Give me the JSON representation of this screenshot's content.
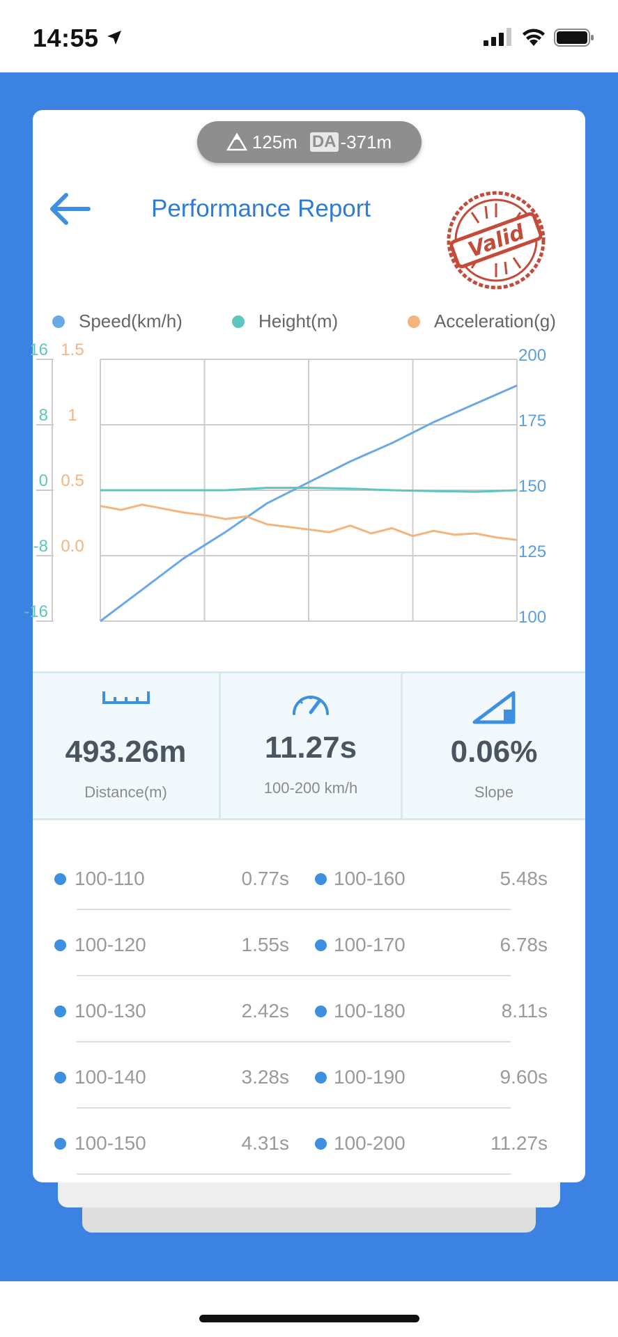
{
  "status_bar": {
    "time": "14:55"
  },
  "altitude_pill": {
    "altitude": "125m",
    "da_label": "DA",
    "density_altitude": "-371m"
  },
  "header": {
    "title": "Performance Report",
    "stamp_text": "Valid"
  },
  "colors": {
    "speed": "#6aa8e6",
    "height": "#5cc6bf",
    "acceleration": "#f4b47e",
    "accent": "#2f7bd8",
    "background": "#3c82e3"
  },
  "chart_data": {
    "type": "line",
    "series": [
      {
        "name": "Speed(km/h)",
        "axis": "right",
        "x": [
          0,
          0.1,
          0.2,
          0.3,
          0.4,
          0.5,
          0.6,
          0.7,
          0.8,
          0.9,
          1.0
        ],
        "values": [
          100,
          112,
          124,
          134,
          145,
          153,
          161,
          168,
          176,
          183,
          190
        ]
      },
      {
        "name": "Height(m)",
        "axis": "left-height",
        "x": [
          0,
          0.1,
          0.2,
          0.3,
          0.4,
          0.5,
          0.6,
          0.7,
          0.8,
          0.9,
          1.0
        ],
        "values": [
          0,
          0,
          0,
          0,
          0.3,
          0.3,
          0.2,
          0,
          -0.1,
          -0.2,
          0
        ]
      },
      {
        "name": "Acceleration(g)",
        "axis": "left-acceleration",
        "x": [
          0,
          0.05,
          0.1,
          0.15,
          0.2,
          0.25,
          0.3,
          0.35,
          0.4,
          0.45,
          0.5,
          0.55,
          0.6,
          0.65,
          0.7,
          0.75,
          0.8,
          0.85,
          0.9,
          0.95,
          1.0
        ],
        "values": [
          0.38,
          0.35,
          0.39,
          0.36,
          0.33,
          0.31,
          0.28,
          0.3,
          0.24,
          0.22,
          0.2,
          0.18,
          0.23,
          0.17,
          0.21,
          0.15,
          0.19,
          0.16,
          0.17,
          0.14,
          0.12
        ]
      }
    ],
    "axes": {
      "left_height": {
        "ticks": [
          "16",
          "8",
          "0",
          "-8",
          "-16"
        ],
        "range": [
          -16,
          16
        ]
      },
      "left_acceleration": {
        "ticks": [
          "1.5",
          "1",
          "0.5",
          "0.0"
        ],
        "range": [
          -0.5,
          1.5
        ]
      },
      "right_speed": {
        "ticks": [
          "200",
          "175",
          "150",
          "125",
          "100"
        ],
        "range": [
          100,
          200
        ]
      }
    },
    "grid": true,
    "legend_position": "top"
  },
  "stats": [
    {
      "value": "493.26m",
      "label": "Distance(m)",
      "icon": "ruler-icon"
    },
    {
      "value": "11.27s",
      "label": "100-200 km/h",
      "icon": "speedometer-icon"
    },
    {
      "value": "0.06%",
      "label": "Slope",
      "icon": "slope-icon"
    }
  ],
  "splits": [
    {
      "left_range": "100-110",
      "left_time": "0.77s",
      "right_range": "100-160",
      "right_time": "5.48s"
    },
    {
      "left_range": "100-120",
      "left_time": "1.55s",
      "right_range": "100-170",
      "right_time": "6.78s"
    },
    {
      "left_range": "100-130",
      "left_time": "2.42s",
      "right_range": "100-180",
      "right_time": "8.11s"
    },
    {
      "left_range": "100-140",
      "left_time": "3.28s",
      "right_range": "100-190",
      "right_time": "9.60s"
    },
    {
      "left_range": "100-150",
      "left_time": "4.31s",
      "right_range": "100-200",
      "right_time": "11.27s"
    }
  ]
}
